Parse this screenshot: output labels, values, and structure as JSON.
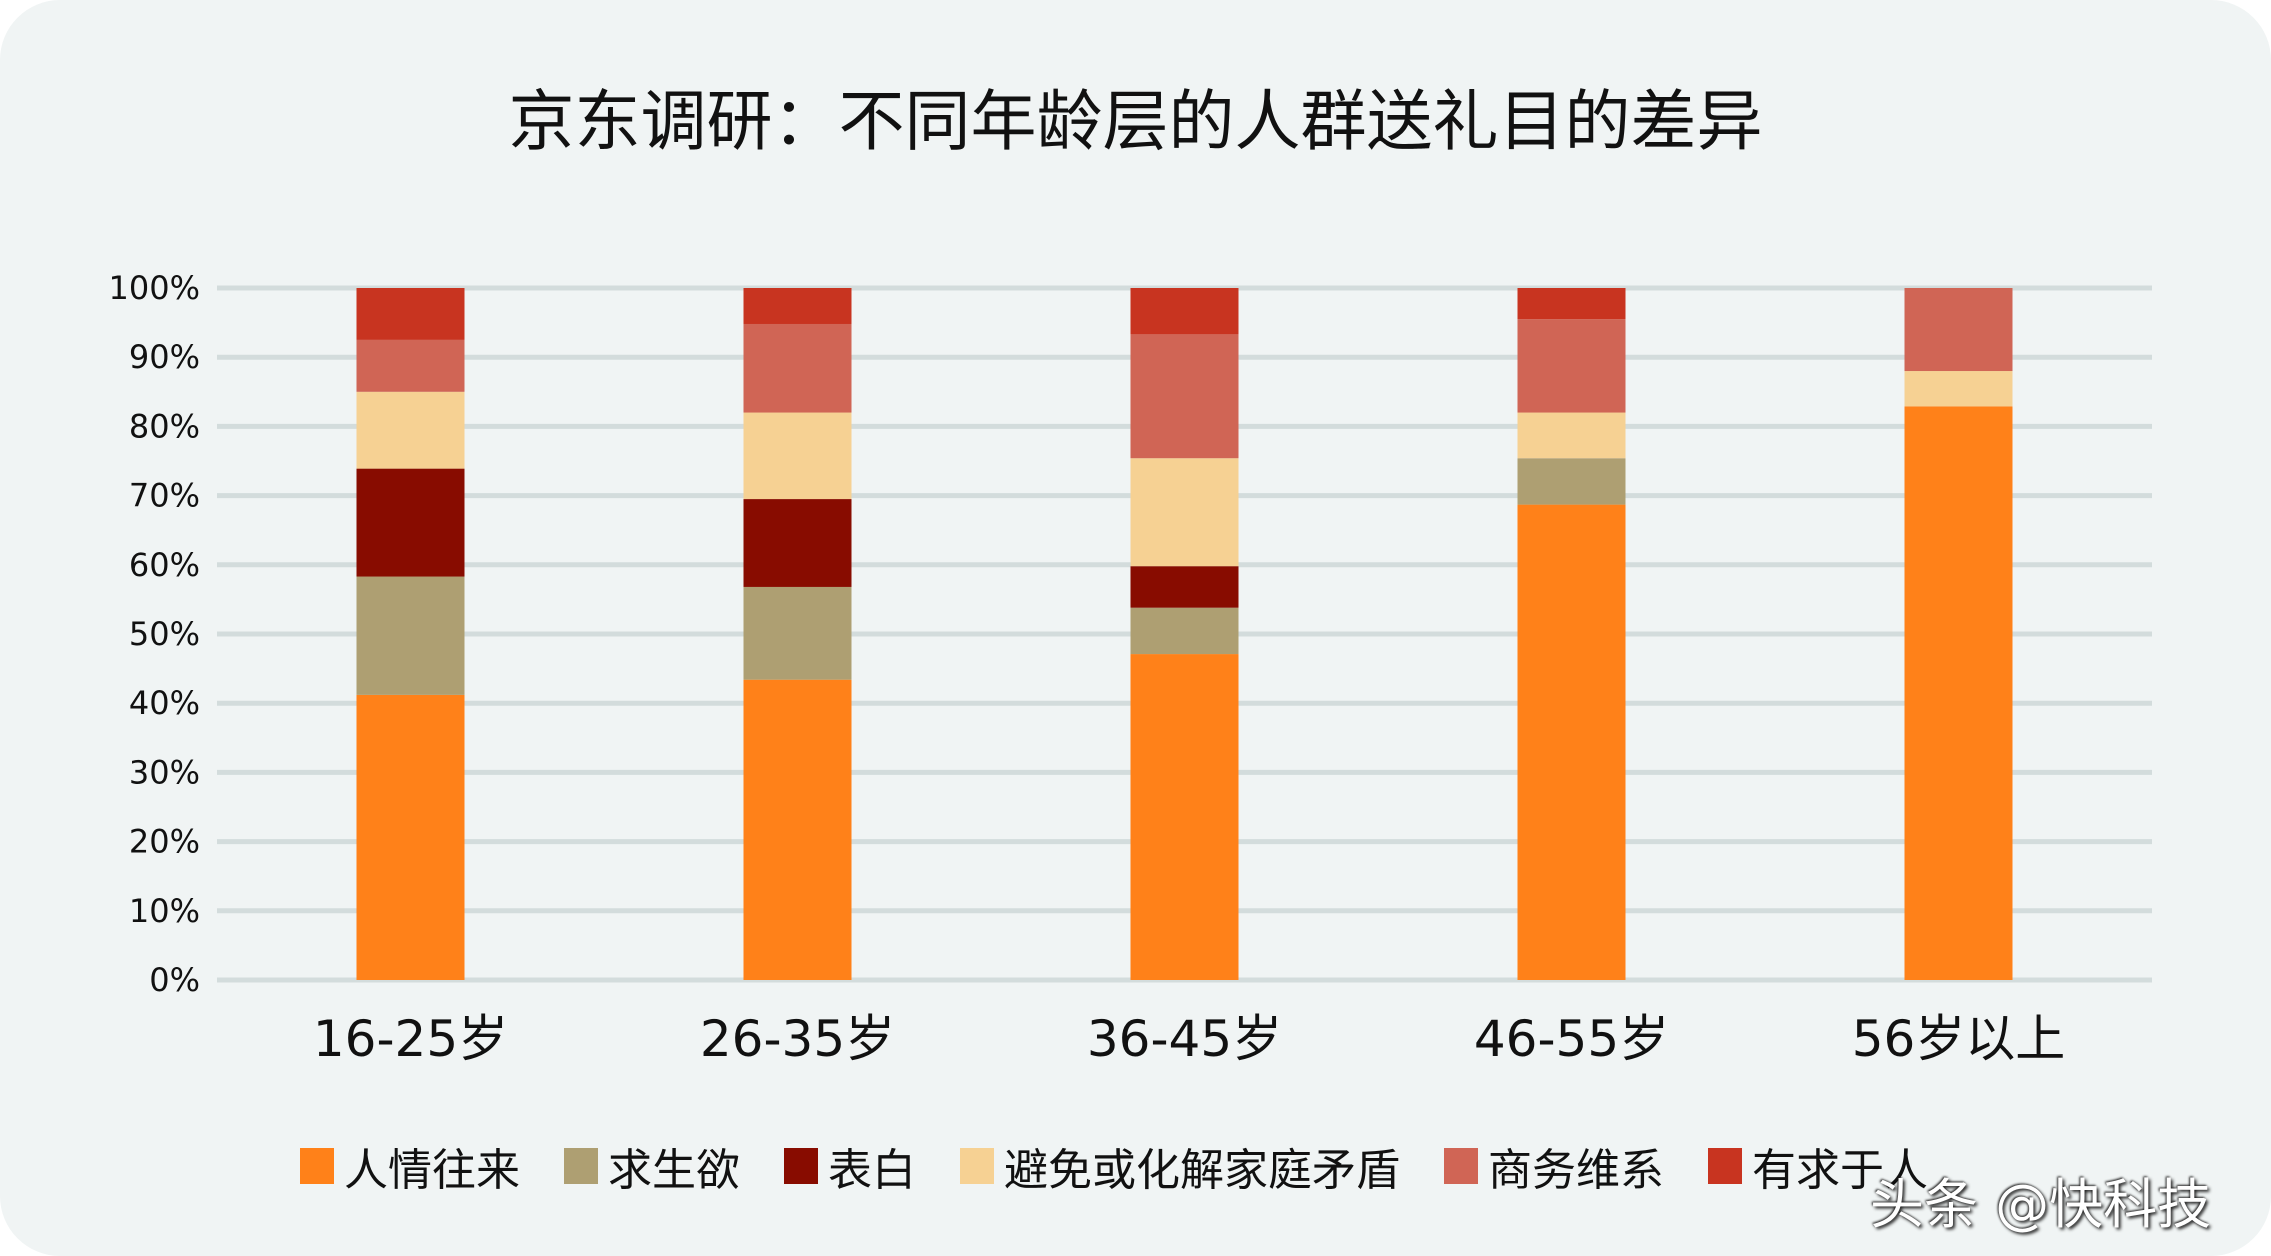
{
  "chart_data": {
    "type": "bar",
    "stacked": true,
    "title": "京东调研：不同年龄层的人群送礼目的差异",
    "xlabel": "",
    "ylabel": "",
    "ylim": [
      0,
      100
    ],
    "yticks": [
      "0%",
      "10%",
      "20%",
      "30%",
      "40%",
      "50%",
      "60%",
      "70%",
      "80%",
      "90%",
      "100%"
    ],
    "grid": true,
    "legend_position": "bottom",
    "categories": [
      "16-25岁",
      "26-35岁",
      "36-45岁",
      "46-55岁",
      "56岁以上"
    ],
    "series": [
      {
        "name": "人情往来",
        "color": "#ff8119",
        "values": [
          41.2,
          43.4,
          47.1,
          68.7,
          82.9
        ]
      },
      {
        "name": "求生欲",
        "color": "#ae9f72",
        "values": [
          17.1,
          13.4,
          6.7,
          6.7,
          0
        ]
      },
      {
        "name": "表白",
        "color": "#880c00",
        "values": [
          15.6,
          12.7,
          6.0,
          0,
          0
        ]
      },
      {
        "name": "避免或化解家庭矛盾",
        "color": "#f6d193",
        "values": [
          11.1,
          12.5,
          15.6,
          6.6,
          5.1
        ]
      },
      {
        "name": "商务维系",
        "color": "#d06555",
        "values": [
          7.5,
          12.8,
          17.9,
          13.5,
          12.0
        ]
      },
      {
        "name": "有求于人",
        "color": "#c83420",
        "values": [
          7.5,
          5.2,
          6.7,
          4.5,
          0
        ]
      }
    ]
  },
  "watermark": "头条 @快科技"
}
